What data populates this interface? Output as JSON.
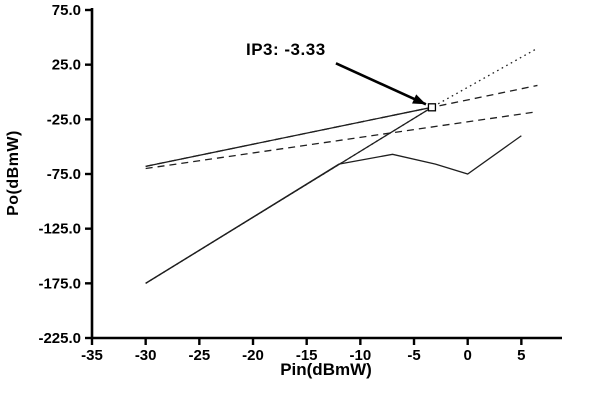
{
  "chart_data": {
    "type": "line",
    "title": "",
    "xlabel": "Pin(dBmW)",
    "ylabel": "Po(dBmW)",
    "xlim": [
      -35,
      8.6
    ],
    "ylim": [
      -225,
      75
    ],
    "grid": false,
    "legend": "none",
    "x_ticks": [
      {
        "value": -35,
        "label": "-35"
      },
      {
        "value": -30,
        "label": "-30"
      },
      {
        "value": -25,
        "label": "-25"
      },
      {
        "value": -20,
        "label": "-20"
      },
      {
        "value": -15,
        "label": "-15"
      },
      {
        "value": -10,
        "label": "-10"
      },
      {
        "value": -5,
        "label": "-5"
      },
      {
        "value": 0,
        "label": "0"
      },
      {
        "value": 5,
        "label": "5"
      }
    ],
    "y_ticks": [
      {
        "value": 75,
        "label": "75.0"
      },
      {
        "value": 25,
        "label": "25.0"
      },
      {
        "value": -25,
        "label": "-25.0"
      },
      {
        "value": -75,
        "label": "-75.0"
      },
      {
        "value": -125,
        "label": "-125.0"
      },
      {
        "value": -175,
        "label": "-175.0"
      },
      {
        "value": -225,
        "label": "-225.0"
      }
    ],
    "annotation": {
      "text": "IP3: -3.33",
      "target": [
        -3.33,
        -14
      ]
    },
    "ip3_marker": {
      "point": [
        -3.33,
        -14
      ],
      "shape": "open-square"
    },
    "series": [
      {
        "name": "im3-ideal-line",
        "style": "solid",
        "points": [
          [
            -30,
            -175
          ],
          [
            -3.33,
            -14
          ]
        ]
      },
      {
        "name": "im3-extrapolation-dotted",
        "style": "dotted",
        "points": [
          [
            -30,
            -175
          ],
          [
            -3.33,
            -14
          ],
          [
            6.5,
            40
          ]
        ]
      },
      {
        "name": "im3-measured-curve",
        "style": "solid",
        "points": [
          [
            -30,
            -175
          ],
          [
            -12,
            -66
          ],
          [
            -7,
            -57
          ],
          [
            -3,
            -66
          ],
          [
            0,
            -75
          ],
          [
            5,
            -40
          ]
        ]
      },
      {
        "name": "fundamental-measured-line",
        "style": "solid",
        "points": [
          [
            -30,
            -68
          ],
          [
            -3.33,
            -14
          ]
        ]
      },
      {
        "name": "fundamental-extrapolation-dashed",
        "style": "dashed",
        "points": [
          [
            -30,
            -68
          ],
          [
            -3.33,
            -14
          ],
          [
            6.5,
            6
          ]
        ]
      },
      {
        "name": "gain-reference-dashed",
        "style": "dashed",
        "points": [
          [
            -30,
            -70
          ],
          [
            6.5,
            -18
          ]
        ]
      }
    ]
  },
  "colors": {
    "axis": "#000000",
    "line": "#1f1f1f",
    "annotation": "#000000",
    "background": "#ffffff"
  }
}
